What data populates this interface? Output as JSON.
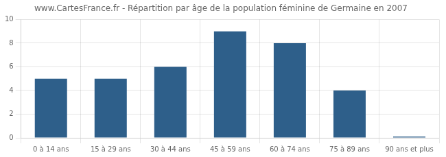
{
  "chart_data": {
    "type": "bar",
    "title": "www.CartesFrance.fr - Répartition par âge de la population féminine de Germaine en 2007",
    "categories": [
      "0 à 14 ans",
      "15 à 29 ans",
      "30 à 44 ans",
      "45 à 59 ans",
      "60 à 74 ans",
      "75 à 89 ans",
      "90 ans et plus"
    ],
    "values": [
      5,
      5,
      6,
      9,
      8,
      4,
      0.1
    ],
    "color": "#2e5f8a",
    "ylim": [
      0,
      10
    ],
    "yticks": [
      0,
      2,
      4,
      6,
      8,
      10
    ],
    "grid": true
  }
}
